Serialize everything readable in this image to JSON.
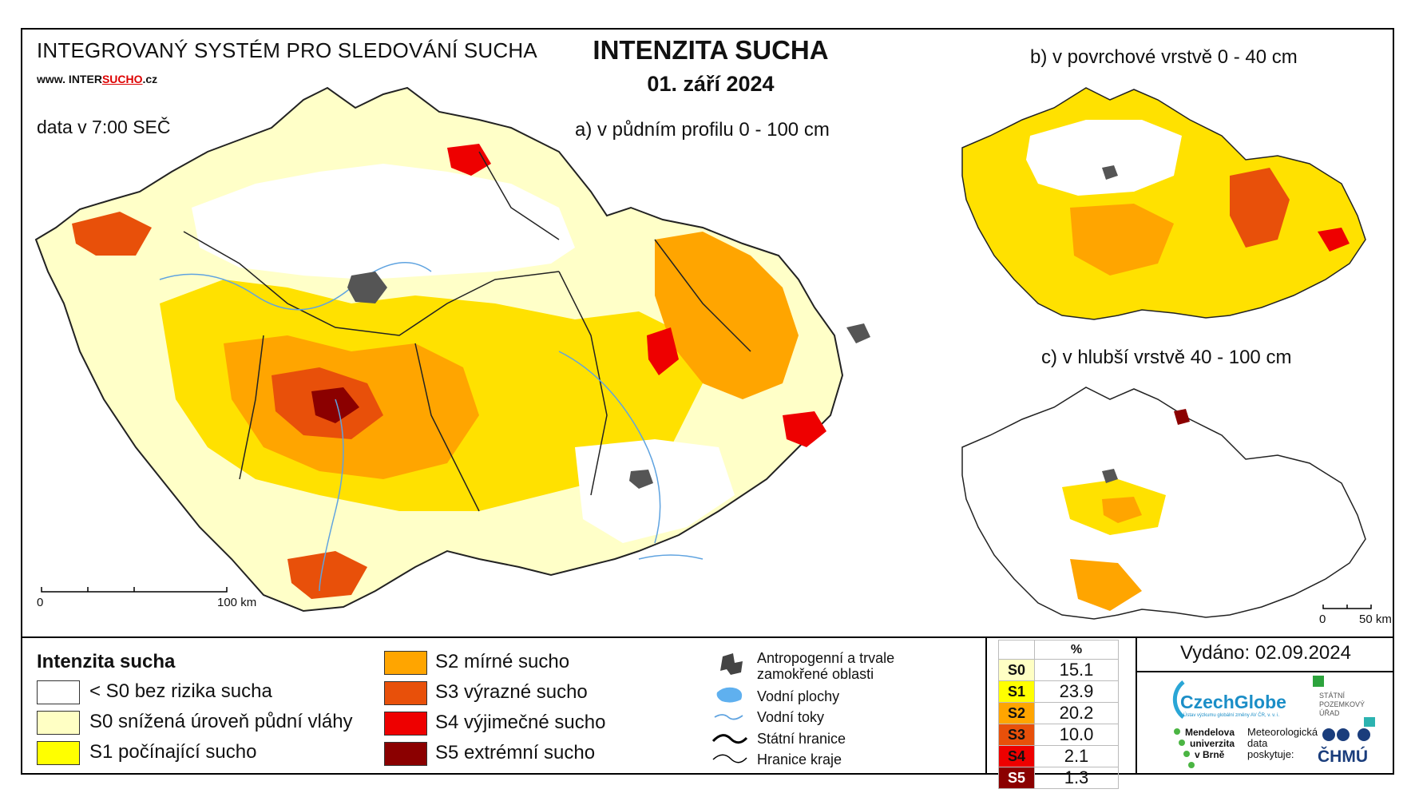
{
  "header": {
    "system_title": "INTEGROVANÝ SYSTÉM PRO SLEDOVÁNÍ SUCHA",
    "website_prefix": "www. INTER",
    "website_accent": "SUCHO",
    "website_suffix": ".cz",
    "data_time": "data v 7:00 SEČ"
  },
  "title": "INTENZITA SUCHA",
  "date": "01. září 2024",
  "maps": {
    "a_label": "a) v půdním profilu 0 - 100 cm",
    "b_label": "b) v povrchové vrstvě 0 - 40 cm",
    "c_label": "c) v hlubší vrstvě 40 - 100 cm",
    "scale_main": {
      "start": "0",
      "end": "100 km"
    },
    "scale_small": {
      "start": "0",
      "end": "50 km"
    }
  },
  "legend": {
    "title": "Intenzita sucha",
    "categories": [
      {
        "label": "< S0 bez rizika sucha",
        "color": "#ffffff"
      },
      {
        "label": "S0 snížená úroveň půdní vláhy",
        "color": "#ffffc4"
      },
      {
        "label": "S1 počínající sucho",
        "color": "#ffff00"
      },
      {
        "label": "S2 mírné sucho",
        "color": "#ffa500"
      },
      {
        "label": "S3 výrazné sucho",
        "color": "#e8500a"
      },
      {
        "label": "S4 výjimečné sucho",
        "color": "#ee0000"
      },
      {
        "label": "S5 extrémní sucho",
        "color": "#8b0000"
      }
    ],
    "symbols": [
      {
        "label": "Antropogenní a trvale zamokřené oblasti",
        "icon": "urban-area-icon"
      },
      {
        "label": "Vodní plochy",
        "icon": "water-body-icon"
      },
      {
        "label": "Vodní toky",
        "icon": "river-icon"
      },
      {
        "label": "Státní hranice",
        "icon": "state-border-icon"
      },
      {
        "label": "Hranice kraje",
        "icon": "region-border-icon"
      }
    ]
  },
  "percent_table": {
    "header": "%",
    "rows": [
      {
        "code": "S0",
        "value": "15.1",
        "color": "#ffffc4"
      },
      {
        "code": "S1",
        "value": "23.9",
        "color": "#ffff00"
      },
      {
        "code": "S2",
        "value": "20.2",
        "color": "#ffa500"
      },
      {
        "code": "S3",
        "value": "10.0",
        "color": "#e8500a"
      },
      {
        "code": "S4",
        "value": "2.1",
        "color": "#ee0000"
      },
      {
        "code": "S5",
        "value": "1.3",
        "color": "#8b0000"
      }
    ]
  },
  "issued": "Vydáno: 02.09.2024",
  "logos": {
    "czechglobe": "CzechGlobe",
    "czechglobe_sub": "Ústav výzkumu globální změny AV ČR, v. v. i.",
    "spu_lines": [
      "STÁTNÍ",
      "POZEMKOVÝ",
      "ÚŘAD"
    ],
    "mendelu_lines": [
      "Mendelova",
      "univerzita",
      "v Brně"
    ],
    "meteo_lines": [
      "Meteorologická",
      "data",
      "poskytuje:"
    ],
    "chmu": "ČHMÚ"
  }
}
